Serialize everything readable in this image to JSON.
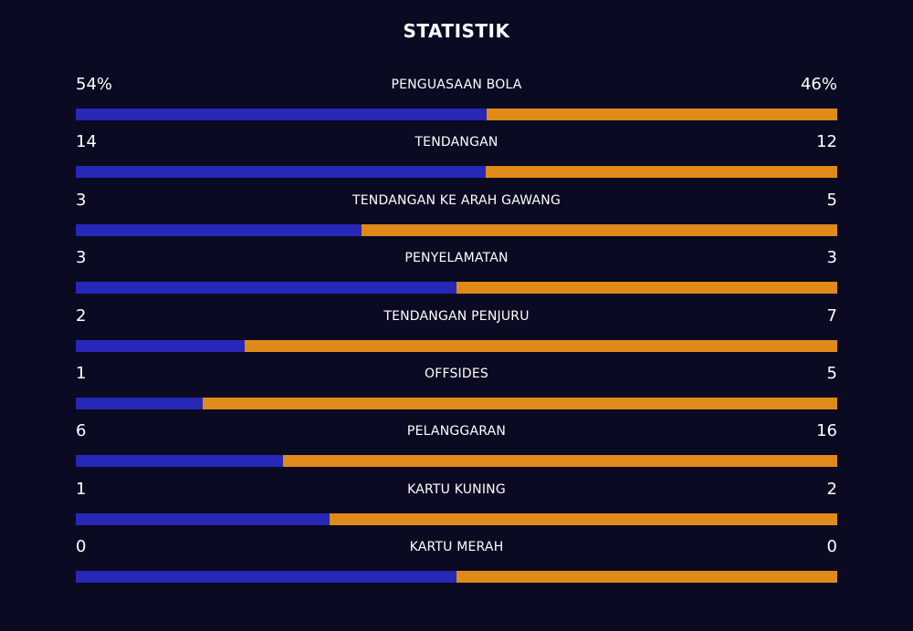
{
  "title": "STATISTIK",
  "colors": {
    "home": "#2727b8",
    "away": "#e08a1a",
    "background": "#0a0a22"
  },
  "stats": [
    {
      "label": "PENGUASAAN BOLA",
      "home": "54%",
      "away": "46%",
      "home_share": 0.54
    },
    {
      "label": "TENDANGAN",
      "home": "14",
      "away": "12",
      "home_share": 0.5385
    },
    {
      "label": "TENDANGAN KE ARAH GAWANG",
      "home": "3",
      "away": "5",
      "home_share": 0.375
    },
    {
      "label": "PENYELAMATAN",
      "home": "3",
      "away": "3",
      "home_share": 0.5
    },
    {
      "label": "TENDANGAN PENJURU",
      "home": "2",
      "away": "7",
      "home_share": 0.2222
    },
    {
      "label": "OFFSIDES",
      "home": "1",
      "away": "5",
      "home_share": 0.1667
    },
    {
      "label": "PELANGGARAN",
      "home": "6",
      "away": "16",
      "home_share": 0.2727
    },
    {
      "label": "KARTU KUNING",
      "home": "1",
      "away": "2",
      "home_share": 0.3333
    },
    {
      "label": "KARTU MERAH",
      "home": "0",
      "away": "0",
      "home_share": 0.5
    }
  ]
}
